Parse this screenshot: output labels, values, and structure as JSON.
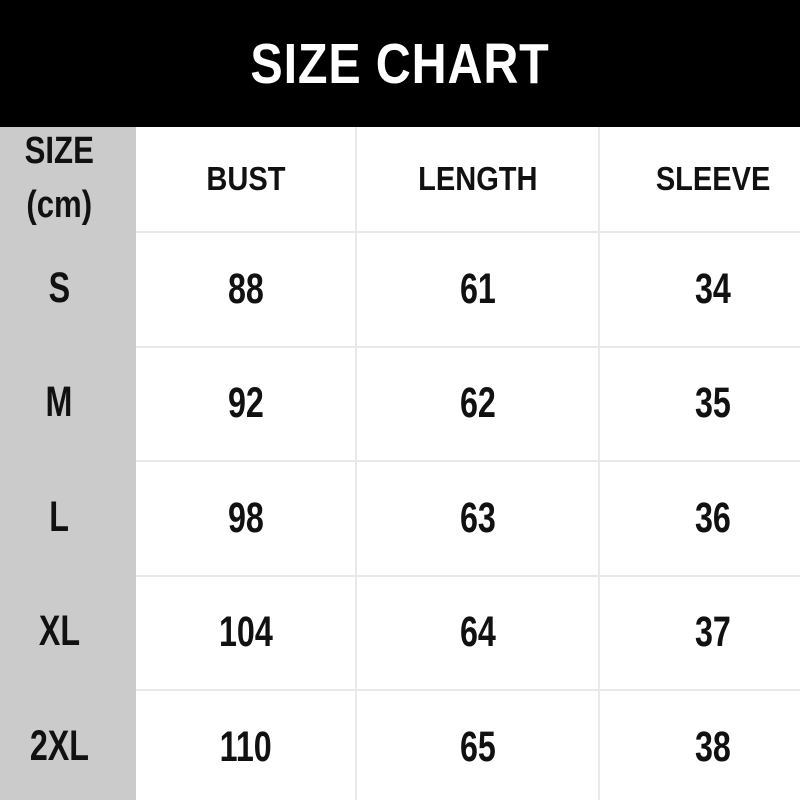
{
  "chart_data": {
    "type": "table",
    "title": "SIZE CHART",
    "unit_header": "SIZE\n(cm)",
    "columns": [
      "BUST",
      "LENGTH",
      "SLEEVE"
    ],
    "rows": [
      {
        "size": "S",
        "values": [
          88,
          61,
          34
        ]
      },
      {
        "size": "M",
        "values": [
          92,
          62,
          35
        ]
      },
      {
        "size": "L",
        "values": [
          98,
          63,
          36
        ]
      },
      {
        "size": "XL",
        "values": [
          104,
          64,
          37
        ]
      },
      {
        "size": "2XL",
        "values": [
          110,
          65,
          38
        ]
      }
    ],
    "layout": {
      "grid": "on",
      "title_position": "top-black-banner",
      "size_column_position": "left"
    }
  },
  "colors": {
    "banner_bg": "#000000",
    "banner_text": "#ffffff",
    "size_column_bg": "#cbcbcb",
    "cell_bg": "#ffffff",
    "grid_line": "#e9e9e9",
    "table_text": "#111111"
  }
}
